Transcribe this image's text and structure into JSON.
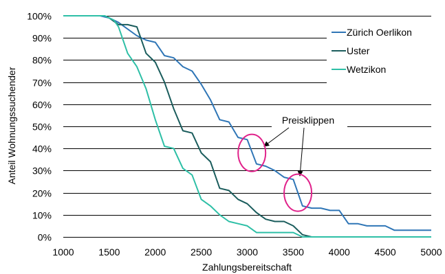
{
  "chart_data": {
    "type": "line",
    "xlabel": "Zahlungsbereitschaft",
    "ylabel": "Anteil Wohnungssuchender",
    "xlim": [
      1000,
      5000
    ],
    "ylim": [
      0,
      100
    ],
    "x_ticks": [
      1000,
      1500,
      2000,
      2500,
      3000,
      3500,
      4000,
      4500,
      5000
    ],
    "y_ticks": [
      0,
      10,
      20,
      30,
      40,
      50,
      60,
      70,
      80,
      90,
      100
    ],
    "y_tick_labels": [
      "0%",
      "10%",
      "20%",
      "30%",
      "40%",
      "50%",
      "60%",
      "70%",
      "80%",
      "90%",
      "100%"
    ],
    "grid": "horizontal",
    "legend_position": "top-right",
    "series": [
      {
        "name": "Zürich Oerlikon",
        "color": "#2E75B6",
        "points": [
          [
            1000,
            100
          ],
          [
            1400,
            100
          ],
          [
            1500,
            99
          ],
          [
            1600,
            97
          ],
          [
            1700,
            94
          ],
          [
            1800,
            91
          ],
          [
            1900,
            89
          ],
          [
            2000,
            88
          ],
          [
            2100,
            82
          ],
          [
            2200,
            81
          ],
          [
            2300,
            77
          ],
          [
            2400,
            75
          ],
          [
            2500,
            69
          ],
          [
            2600,
            62
          ],
          [
            2700,
            53
          ],
          [
            2800,
            52
          ],
          [
            2900,
            45
          ],
          [
            3000,
            44
          ],
          [
            3100,
            33
          ],
          [
            3200,
            32
          ],
          [
            3300,
            30
          ],
          [
            3400,
            27
          ],
          [
            3500,
            26
          ],
          [
            3600,
            14
          ],
          [
            3700,
            13
          ],
          [
            3800,
            13
          ],
          [
            3900,
            12
          ],
          [
            4000,
            12
          ],
          [
            4100,
            6
          ],
          [
            4200,
            6
          ],
          [
            4300,
            5
          ],
          [
            4500,
            5
          ],
          [
            4600,
            3
          ],
          [
            4700,
            3
          ],
          [
            5000,
            3
          ]
        ]
      },
      {
        "name": "Uster",
        "color": "#1A5C5C",
        "points": [
          [
            1000,
            100
          ],
          [
            1450,
            100
          ],
          [
            1500,
            99
          ],
          [
            1600,
            96
          ],
          [
            1700,
            96
          ],
          [
            1800,
            95
          ],
          [
            1900,
            83
          ],
          [
            2000,
            79
          ],
          [
            2100,
            70
          ],
          [
            2200,
            58
          ],
          [
            2300,
            48
          ],
          [
            2400,
            47
          ],
          [
            2500,
            38
          ],
          [
            2600,
            34
          ],
          [
            2700,
            22
          ],
          [
            2800,
            21
          ],
          [
            2900,
            17
          ],
          [
            3000,
            15
          ],
          [
            3100,
            11
          ],
          [
            3200,
            8
          ],
          [
            3300,
            7
          ],
          [
            3400,
            7
          ],
          [
            3500,
            5
          ],
          [
            3600,
            1
          ],
          [
            3700,
            0
          ],
          [
            5000,
            0
          ]
        ]
      },
      {
        "name": "Wetzikon",
        "color": "#2DBFA6",
        "points": [
          [
            1000,
            100
          ],
          [
            1450,
            100
          ],
          [
            1550,
            98
          ],
          [
            1600,
            95
          ],
          [
            1700,
            83
          ],
          [
            1800,
            77
          ],
          [
            1900,
            67
          ],
          [
            2000,
            53
          ],
          [
            2100,
            41
          ],
          [
            2200,
            40
          ],
          [
            2300,
            31
          ],
          [
            2400,
            28
          ],
          [
            2500,
            17
          ],
          [
            2600,
            14
          ],
          [
            2700,
            10
          ],
          [
            2800,
            7
          ],
          [
            2900,
            6
          ],
          [
            3000,
            5
          ],
          [
            3100,
            2
          ],
          [
            3400,
            2
          ],
          [
            3500,
            2
          ],
          [
            3600,
            0
          ],
          [
            5000,
            0
          ]
        ]
      }
    ],
    "annotation": {
      "text": "Preisklippen",
      "color": "#E0218A",
      "circles": [
        {
          "x": 3050,
          "y": 38
        },
        {
          "x": 3550,
          "y": 20
        }
      ]
    }
  }
}
